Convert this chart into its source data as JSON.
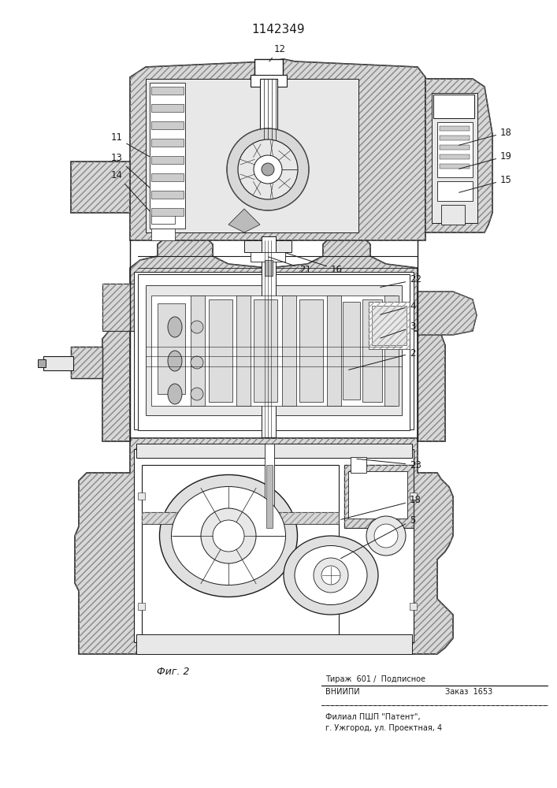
{
  "title": "1142349",
  "fig_label": "Фиг. 2",
  "text_vniiipi": "ВНИИПИ",
  "text_zakaz": "Заказ  1653",
  "text_tirazh": "Тираж  601 /  Подписное",
  "text_filial1": "Филиал ПШП \"Патент\",",
  "text_filial2": "г. Ужгород, ул. Проектная, 4",
  "bg_color": "#ffffff",
  "dc": "#1a1a1a",
  "hatch_fc": "#d8d8d8",
  "white": "#ffffff",
  "light_gray": "#e8e8e8"
}
